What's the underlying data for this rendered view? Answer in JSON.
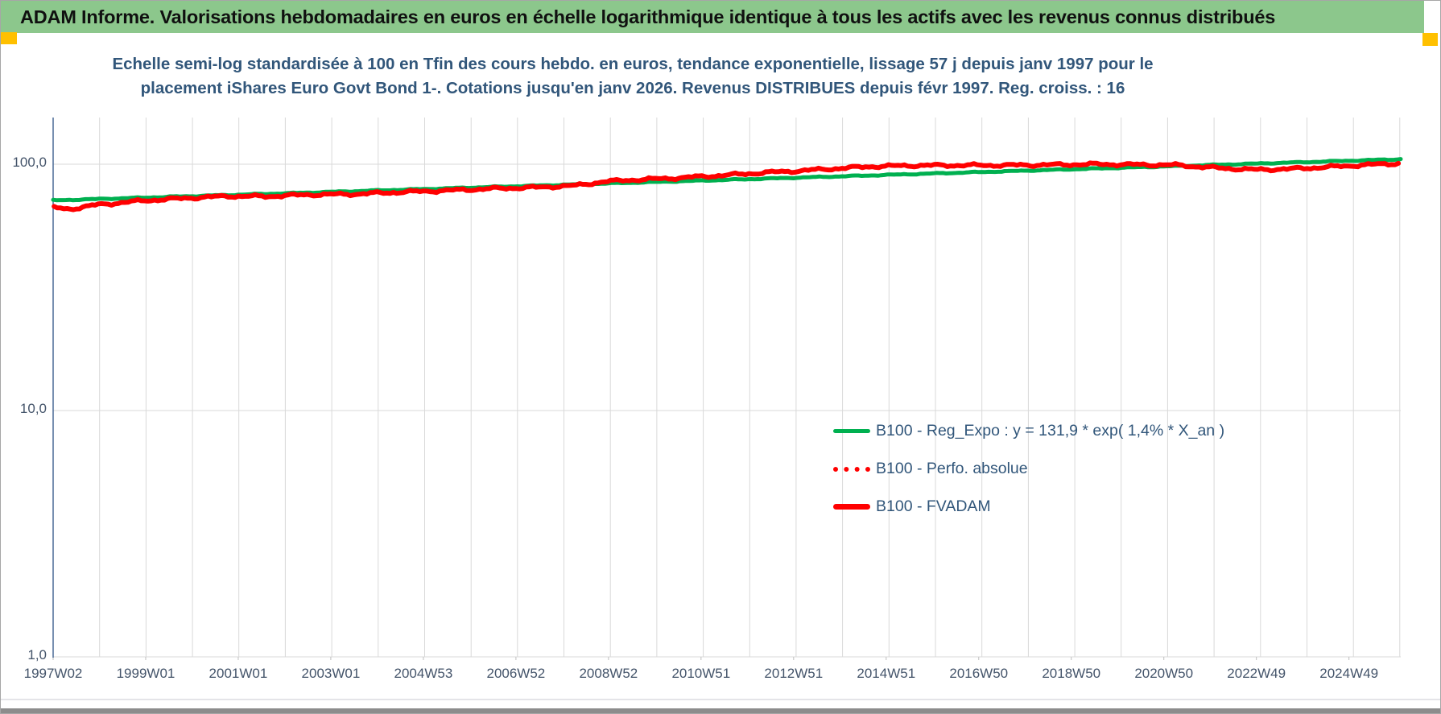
{
  "window": {
    "header": {
      "title": "ADAM Informe. Valorisations hebdomadaires en euros en échelle logarithmique identique à tous les actifs avec les revenus connus distribués"
    },
    "colors": {
      "header_bg": "#8CC78C",
      "marker": "#FFC000",
      "bottom_bar": "#8C8C8C",
      "title_text": "#31567A",
      "axis_label_text": "#44546A",
      "gridline": "#D9D9D9",
      "y_axis_line": "#4A6A96",
      "series_green": "#00B050",
      "series_red": "#FF0000"
    }
  },
  "chart_data": {
    "type": "line",
    "title_lines": [
      "Echelle semi-log standardisée à 100 en Tfin des cours hebdo. en euros, tendance exponentielle, lissage 57 j depuis janv 1997 pour le",
      "placement iShares Euro Govt Bond 1-. Cotations jusqu'en janv 2026. Revenus DISTRIBUES depuis févr 1997. Reg. croiss. : 16"
    ],
    "y_axis": {
      "scale": "log",
      "tick_labels": [
        "100,0",
        "10,0",
        "1,0"
      ],
      "tick_values": [
        100,
        10,
        1
      ],
      "ylim": [
        1,
        155
      ]
    },
    "x_axis": {
      "tick_labels": [
        "1997W02",
        "1999W01",
        "2001W01",
        "2003W01",
        "2004W53",
        "2006W52",
        "2008W52",
        "2010W51",
        "2012W51",
        "2014W51",
        "2016W50",
        "2018W50",
        "2020W50",
        "2022W49",
        "2024W49"
      ],
      "start_year": 1997.03,
      "end_year": 2026.05,
      "gridline_step_years": 1,
      "label_step_weeks": 104
    },
    "grid": true,
    "legend_position": "right-middle",
    "series": [
      {
        "name": "B100 - Reg_Expo : y = 131,9 * exp( 1,4% *  X_an )",
        "color": "#00B050",
        "style": "solid",
        "width": 5,
        "noise": 0.0012,
        "points": [
          [
            1997.03,
            71.3
          ],
          [
            2026.05,
            104.8
          ]
        ]
      },
      {
        "name": "B100 - Perfo. absolue",
        "color": "#FF0000",
        "style": "dotted",
        "width": 5,
        "noise": 0.0035,
        "points": [
          [
            1997.05,
            66.5
          ],
          [
            1997.4,
            65.8
          ],
          [
            1998,
            68.5
          ],
          [
            1999,
            71.2
          ],
          [
            2000,
            73.0
          ],
          [
            2000.8,
            74.2
          ],
          [
            2001.6,
            74.0
          ],
          [
            2002.5,
            75.2
          ],
          [
            2003.5,
            75.6
          ],
          [
            2004.5,
            77.0
          ],
          [
            2005.5,
            78.2
          ],
          [
            2006.5,
            79.6
          ],
          [
            2007.5,
            80.6
          ],
          [
            2008.3,
            82.0
          ],
          [
            2008.9,
            85.0
          ],
          [
            2009.5,
            86.3
          ],
          [
            2010.5,
            88.0
          ],
          [
            2011.5,
            90.2
          ],
          [
            2012.3,
            92.3
          ],
          [
            2013.0,
            93.8
          ],
          [
            2013.8,
            95.8
          ],
          [
            2014.6,
            97.8
          ],
          [
            2015.5,
            98.8
          ],
          [
            2016.5,
            99.0
          ],
          [
            2017.5,
            99.0
          ],
          [
            2018.5,
            99.4
          ],
          [
            2019.5,
            100.0
          ],
          [
            2020.3,
            99.6
          ],
          [
            2021.2,
            99.2
          ],
          [
            2022.0,
            96.8
          ],
          [
            2022.9,
            95.0
          ],
          [
            2023.6,
            95.6
          ],
          [
            2024.4,
            97.2
          ],
          [
            2025.2,
            99.2
          ],
          [
            2026.0,
            100.8
          ]
        ]
      },
      {
        "name": "B100 - FVADAM",
        "color": "#FF0000",
        "style": "solid",
        "width": 6,
        "noise": 0.0035,
        "points": [
          [
            1997.05,
            66.5
          ],
          [
            1997.4,
            65.8
          ],
          [
            1998,
            68.5
          ],
          [
            1999,
            71.2
          ],
          [
            2000,
            73.0
          ],
          [
            2000.8,
            74.2
          ],
          [
            2001.6,
            74.0
          ],
          [
            2002.5,
            75.2
          ],
          [
            2003.5,
            75.6
          ],
          [
            2004.5,
            77.0
          ],
          [
            2005.5,
            78.2
          ],
          [
            2006.5,
            79.6
          ],
          [
            2007.5,
            80.6
          ],
          [
            2008.3,
            82.0
          ],
          [
            2008.9,
            85.0
          ],
          [
            2009.5,
            86.3
          ],
          [
            2010.5,
            88.0
          ],
          [
            2011.5,
            90.2
          ],
          [
            2012.3,
            92.3
          ],
          [
            2013.0,
            93.8
          ],
          [
            2013.8,
            95.8
          ],
          [
            2014.6,
            97.8
          ],
          [
            2015.5,
            98.8
          ],
          [
            2016.5,
            99.0
          ],
          [
            2017.5,
            99.0
          ],
          [
            2018.5,
            99.4
          ],
          [
            2019.5,
            100.0
          ],
          [
            2020.3,
            99.6
          ],
          [
            2021.2,
            99.2
          ],
          [
            2022.0,
            96.8
          ],
          [
            2022.9,
            95.0
          ],
          [
            2023.6,
            95.6
          ],
          [
            2024.4,
            97.2
          ],
          [
            2025.2,
            99.2
          ],
          [
            2026.0,
            100.8
          ]
        ]
      }
    ]
  }
}
